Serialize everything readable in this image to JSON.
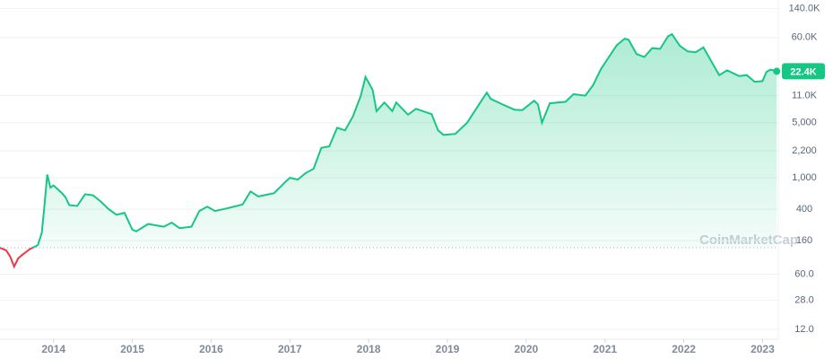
{
  "chart_data": {
    "type": "line",
    "log_scale": true,
    "grid": true,
    "watermark": "CoinMarketCap",
    "up_color": "#16c784",
    "down_color": "#ea3943",
    "xlim": [
      2013.32,
      2023.2
    ],
    "xticks": [
      2014,
      2015,
      2016,
      2017,
      2018,
      2019,
      2020,
      2021,
      2022,
      2023
    ],
    "ylim": [
      9,
      170000
    ],
    "yticks": [
      {
        "value": 140000,
        "label": "140.0K"
      },
      {
        "value": 60000,
        "label": "60.0K"
      },
      {
        "value": 11000,
        "label": "11.0K"
      },
      {
        "value": 5000,
        "label": "5,000"
      },
      {
        "value": 2200,
        "label": "2,200"
      },
      {
        "value": 1000,
        "label": "1,000"
      },
      400,
      160,
      {
        "value": 60,
        "label": "60.0"
      },
      {
        "value": 28,
        "label": "28.0"
      },
      {
        "value": 12,
        "label": "12.0"
      }
    ],
    "last_label": {
      "value": 22400,
      "label": "22.4K"
    },
    "x": [
      2013.32,
      2013.4,
      2013.45,
      2013.5,
      2013.55,
      2013.6,
      2013.7,
      2013.8,
      2013.85,
      2013.88,
      2013.92,
      2013.96,
      2014.0,
      2014.1,
      2014.15,
      2014.2,
      2014.3,
      2014.4,
      2014.5,
      2014.6,
      2014.7,
      2014.8,
      2014.9,
      2015.0,
      2015.05,
      2015.2,
      2015.4,
      2015.5,
      2015.6,
      2015.75,
      2015.85,
      2015.95,
      2016.05,
      2016.2,
      2016.4,
      2016.5,
      2016.6,
      2016.8,
      2016.95,
      2017.0,
      2017.1,
      2017.2,
      2017.3,
      2017.4,
      2017.5,
      2017.6,
      2017.7,
      2017.8,
      2017.9,
      2017.96,
      2018.05,
      2018.1,
      2018.2,
      2018.3,
      2018.35,
      2018.5,
      2018.6,
      2018.8,
      2018.88,
      2018.95,
      2019.1,
      2019.25,
      2019.4,
      2019.5,
      2019.55,
      2019.7,
      2019.85,
      2019.95,
      2020.1,
      2020.15,
      2020.2,
      2020.3,
      2020.5,
      2020.6,
      2020.75,
      2020.85,
      2020.95,
      2021.05,
      2021.15,
      2021.25,
      2021.3,
      2021.4,
      2021.5,
      2021.6,
      2021.7,
      2021.8,
      2021.85,
      2021.95,
      2022.05,
      2022.15,
      2022.25,
      2022.35,
      2022.45,
      2022.55,
      2022.7,
      2022.8,
      2022.9,
      2023.0,
      2023.05,
      2023.1,
      2023.18
    ],
    "values": [
      130,
      120,
      100,
      75,
      95,
      105,
      125,
      140,
      200,
      400,
      1100,
      750,
      800,
      650,
      570,
      450,
      440,
      620,
      600,
      500,
      400,
      340,
      360,
      220,
      210,
      260,
      240,
      270,
      230,
      240,
      380,
      430,
      380,
      410,
      460,
      670,
      580,
      640,
      900,
      1000,
      950,
      1150,
      1300,
      2400,
      2500,
      4300,
      4000,
      6000,
      11000,
      19000,
      13000,
      7000,
      9000,
      7000,
      9000,
      6300,
      7500,
      6400,
      4000,
      3500,
      3600,
      5000,
      8500,
      12000,
      10000,
      8500,
      7300,
      7200,
      9500,
      8500,
      5000,
      8800,
      9200,
      11500,
      11000,
      15000,
      24000,
      34000,
      48000,
      58000,
      56000,
      37000,
      34000,
      44000,
      43000,
      62000,
      66000,
      47000,
      40000,
      39000,
      45000,
      30000,
      20000,
      23000,
      19500,
      20000,
      16500,
      16800,
      22000,
      23500,
      22400
    ]
  }
}
